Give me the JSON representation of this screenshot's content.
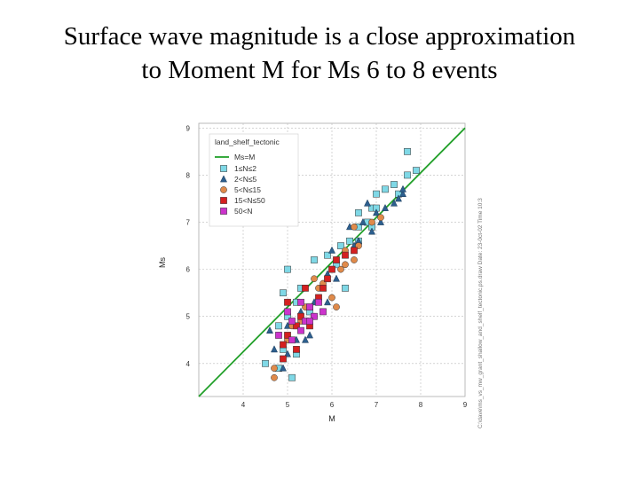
{
  "slide": {
    "title_line1": "Surface wave magnitude is a close approximation",
    "title_line2": "to Moment M for Ms 6 to 8 events"
  },
  "chart_data": {
    "type": "scatter",
    "xlabel": "M",
    "ylabel": "Ms",
    "xlim": [
      3,
      9
    ],
    "ylim": [
      3.3,
      9.1
    ],
    "xticks": [
      "4",
      "5",
      "6",
      "7",
      "8",
      "9"
    ],
    "yticks": [
      "4",
      "5",
      "6",
      "7",
      "8",
      "9"
    ],
    "grid": true,
    "legend_title": "land_shelf_tectonic",
    "legend_position": "top-left",
    "side_note": "C:\\dave\\ms_vs_mw_grant_shallow_and_shelf_tectonic.ps.draw  Date: 23-0ct-02  Time 10:3",
    "reference_line": {
      "name": "Ms=M",
      "color": "#22a02a",
      "from": [
        3,
        3
      ],
      "to": [
        9,
        9
      ]
    },
    "series": [
      {
        "name": "1≤N≤2",
        "marker": "square",
        "color": "#7fd8e6",
        "points": [
          [
            4.5,
            4.0
          ],
          [
            4.8,
            3.9
          ],
          [
            5.1,
            3.7
          ],
          [
            4.9,
            4.3
          ],
          [
            5.2,
            4.2
          ],
          [
            4.8,
            4.8
          ],
          [
            5.0,
            5.0
          ],
          [
            5.2,
            5.3
          ],
          [
            5.3,
            5.6
          ],
          [
            4.9,
            5.5
          ],
          [
            5.0,
            6.0
          ],
          [
            5.5,
            5.1
          ],
          [
            5.6,
            6.2
          ],
          [
            5.9,
            6.3
          ],
          [
            6.1,
            6.1
          ],
          [
            6.3,
            5.6
          ],
          [
            6.2,
            6.5
          ],
          [
            6.4,
            6.6
          ],
          [
            6.6,
            6.9
          ],
          [
            6.8,
            7.0
          ],
          [
            6.9,
            7.3
          ],
          [
            7.0,
            7.3
          ],
          [
            7.0,
            7.6
          ],
          [
            7.2,
            7.7
          ],
          [
            7.4,
            7.8
          ],
          [
            7.5,
            7.6
          ],
          [
            7.7,
            8.0
          ],
          [
            7.7,
            8.5
          ],
          [
            7.9,
            8.1
          ],
          [
            6.6,
            7.2
          ],
          [
            6.9,
            6.9
          ],
          [
            6.6,
            6.6
          ]
        ]
      },
      {
        "name": "2<N≤5",
        "marker": "triangle",
        "color": "#2d5f8e",
        "points": [
          [
            4.6,
            4.7
          ],
          [
            4.7,
            4.3
          ],
          [
            4.9,
            3.9
          ],
          [
            5.0,
            4.2
          ],
          [
            5.0,
            4.8
          ],
          [
            5.2,
            4.5
          ],
          [
            5.4,
            4.5
          ],
          [
            5.5,
            4.6
          ],
          [
            5.3,
            5.1
          ],
          [
            5.6,
            5.3
          ],
          [
            5.8,
            5.6
          ],
          [
            5.9,
            5.9
          ],
          [
            6.1,
            5.8
          ],
          [
            6.3,
            6.3
          ],
          [
            6.5,
            6.5
          ],
          [
            6.6,
            6.6
          ],
          [
            6.7,
            7.0
          ],
          [
            6.9,
            6.8
          ],
          [
            7.0,
            7.2
          ],
          [
            7.1,
            7.0
          ],
          [
            7.2,
            7.3
          ],
          [
            7.4,
            7.4
          ],
          [
            7.5,
            7.5
          ],
          [
            7.6,
            7.6
          ],
          [
            6.4,
            6.9
          ],
          [
            6.8,
            7.4
          ],
          [
            5.9,
            5.3
          ],
          [
            6.0,
            6.4
          ],
          [
            7.6,
            7.7
          ]
        ]
      },
      {
        "name": "5<N≤15",
        "marker": "circle",
        "color": "#e08a4a",
        "points": [
          [
            4.7,
            3.7
          ],
          [
            4.7,
            3.9
          ],
          [
            5.0,
            4.5
          ],
          [
            5.1,
            4.8
          ],
          [
            5.3,
            4.9
          ],
          [
            5.4,
            5.2
          ],
          [
            5.6,
            5.0
          ],
          [
            5.7,
            5.6
          ],
          [
            5.8,
            5.7
          ],
          [
            6.0,
            5.4
          ],
          [
            6.1,
            5.2
          ],
          [
            6.2,
            6.0
          ],
          [
            6.3,
            6.1
          ],
          [
            6.5,
            6.2
          ],
          [
            6.6,
            6.5
          ],
          [
            6.5,
            6.9
          ],
          [
            6.9,
            7.0
          ],
          [
            7.1,
            7.1
          ],
          [
            5.6,
            5.8
          ],
          [
            6.3,
            6.4
          ]
        ]
      },
      {
        "name": "15<N≤50",
        "marker": "square",
        "color": "#d42020",
        "points": [
          [
            4.9,
            4.1
          ],
          [
            4.9,
            4.4
          ],
          [
            5.0,
            4.6
          ],
          [
            5.2,
            4.3
          ],
          [
            5.2,
            4.8
          ],
          [
            5.3,
            5.0
          ],
          [
            5.5,
            4.8
          ],
          [
            5.5,
            5.2
          ],
          [
            5.7,
            5.4
          ],
          [
            5.8,
            5.6
          ],
          [
            5.9,
            5.8
          ],
          [
            6.0,
            6.0
          ],
          [
            6.1,
            6.2
          ],
          [
            6.3,
            6.3
          ],
          [
            6.5,
            6.4
          ],
          [
            5.0,
            5.3
          ],
          [
            5.4,
            5.6
          ]
        ]
      },
      {
        "name": "50<N",
        "marker": "square",
        "color": "#cc33cc",
        "points": [
          [
            4.8,
            4.6
          ],
          [
            5.0,
            5.1
          ],
          [
            5.1,
            4.9
          ],
          [
            5.3,
            5.3
          ],
          [
            5.5,
            5.2
          ],
          [
            5.6,
            5.0
          ],
          [
            5.8,
            5.1
          ],
          [
            5.3,
            4.7
          ],
          [
            5.1,
            4.5
          ],
          [
            5.4,
            4.9
          ],
          [
            5.5,
            4.9
          ],
          [
            5.7,
            5.3
          ]
        ]
      }
    ]
  }
}
